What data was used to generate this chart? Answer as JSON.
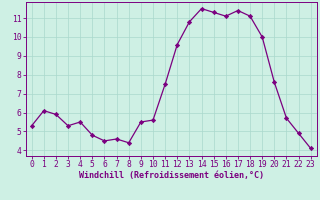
{
  "x": [
    0,
    1,
    2,
    3,
    4,
    5,
    6,
    7,
    8,
    9,
    10,
    11,
    12,
    13,
    14,
    15,
    16,
    17,
    18,
    19,
    20,
    21,
    22,
    23
  ],
  "y": [
    5.3,
    6.1,
    5.9,
    5.3,
    5.5,
    4.8,
    4.5,
    4.6,
    4.4,
    5.5,
    5.6,
    7.5,
    9.6,
    10.8,
    11.5,
    11.3,
    11.1,
    11.4,
    11.1,
    10.0,
    7.6,
    5.7,
    4.9,
    4.1
  ],
  "line_color": "#7b0080",
  "marker": "D",
  "marker_size": 2.2,
  "bg_color": "#cef0e4",
  "grid_color": "#aad8cc",
  "xlabel": "Windchill (Refroidissement éolien,°C)",
  "xlim": [
    -0.5,
    23.5
  ],
  "ylim": [
    3.7,
    11.85
  ],
  "xticks": [
    0,
    1,
    2,
    3,
    4,
    5,
    6,
    7,
    8,
    9,
    10,
    11,
    12,
    13,
    14,
    15,
    16,
    17,
    18,
    19,
    20,
    21,
    22,
    23
  ],
  "yticks": [
    4,
    5,
    6,
    7,
    8,
    9,
    10,
    11
  ],
  "xlabel_color": "#7b0080",
  "tick_color": "#7b0080",
  "spine_color": "#7b0080",
  "label_fontsize": 6.0,
  "tick_fontsize": 5.8
}
